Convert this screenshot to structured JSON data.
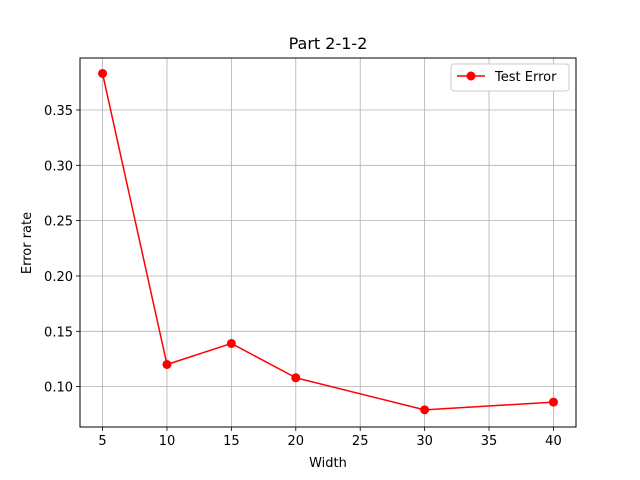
{
  "chart_data": {
    "type": "line",
    "title": "Part 2-1-2",
    "xlabel": "Width",
    "ylabel": "Error rate",
    "xlim": [
      3.25,
      41.75
    ],
    "ylim": [
      0.0635,
      0.397
    ],
    "xticks": [
      5,
      10,
      15,
      20,
      25,
      30,
      35,
      40
    ],
    "xtick_labels": [
      "5",
      "10",
      "15",
      "20",
      "25",
      "30",
      "35",
      "40"
    ],
    "yticks": [
      0.1,
      0.15,
      0.2,
      0.25,
      0.3,
      0.35
    ],
    "ytick_labels": [
      "0.10",
      "0.15",
      "0.20",
      "0.25",
      "0.30",
      "0.35"
    ],
    "grid": true,
    "legend_position": "top-right",
    "series": [
      {
        "name": "Test Error",
        "color": "#ff0000",
        "marker": "circle",
        "x": [
          5,
          10,
          15,
          20,
          30,
          40
        ],
        "y": [
          0.383,
          0.12,
          0.139,
          0.108,
          0.079,
          0.086
        ]
      }
    ]
  }
}
